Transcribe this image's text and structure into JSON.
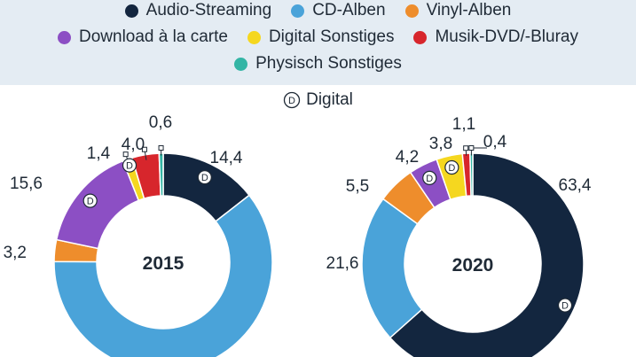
{
  "legend": {
    "items": [
      {
        "label": "Audio-Streaming",
        "color": "#13263f"
      },
      {
        "label": "CD-Alben",
        "color": "#4aa3d9"
      },
      {
        "label": "Vinyl-Alben",
        "color": "#ee8d2c"
      },
      {
        "label": "Download à la carte",
        "color": "#8c4fc4"
      },
      {
        "label": "Digital Sonstiges",
        "color": "#f5d71f"
      },
      {
        "label": "Musik-DVD/-Bluray",
        "color": "#d7262c"
      },
      {
        "label": "Physisch Sonstiges",
        "color": "#33b5a5"
      }
    ],
    "digital_symbol": "D",
    "digital_label": "Digital"
  },
  "chart_data": [
    {
      "type": "pie",
      "title": "2015",
      "categories": [
        "Audio-Streaming",
        "CD-Alben",
        "Vinyl-Alben",
        "Download à la carte",
        "Digital Sonstiges",
        "Musik-DVD/-Bluray",
        "Physisch Sonstiges"
      ],
      "values": [
        14.4,
        60.4,
        3.2,
        15.6,
        1.4,
        4.0,
        0.6
      ],
      "labels": [
        "14,4",
        "",
        "3,2",
        "15,6",
        "1,4",
        "4,0",
        "0,6"
      ],
      "digital": [
        true,
        false,
        false,
        true,
        true,
        false,
        false
      ]
    },
    {
      "type": "pie",
      "title": "2020",
      "categories": [
        "Audio-Streaming",
        "CD-Alben",
        "Vinyl-Alben",
        "Download à la carte",
        "Digital Sonstiges",
        "Musik-DVD/-Bluray",
        "Physisch Sonstiges"
      ],
      "values": [
        63.4,
        21.6,
        5.5,
        4.2,
        3.8,
        1.1,
        0.4
      ],
      "labels": [
        "63,4",
        "21,6",
        "5,5",
        "4,2",
        "3,8",
        "1,1",
        "0,4"
      ],
      "digital": [
        true,
        false,
        false,
        true,
        true,
        false,
        false
      ]
    }
  ]
}
